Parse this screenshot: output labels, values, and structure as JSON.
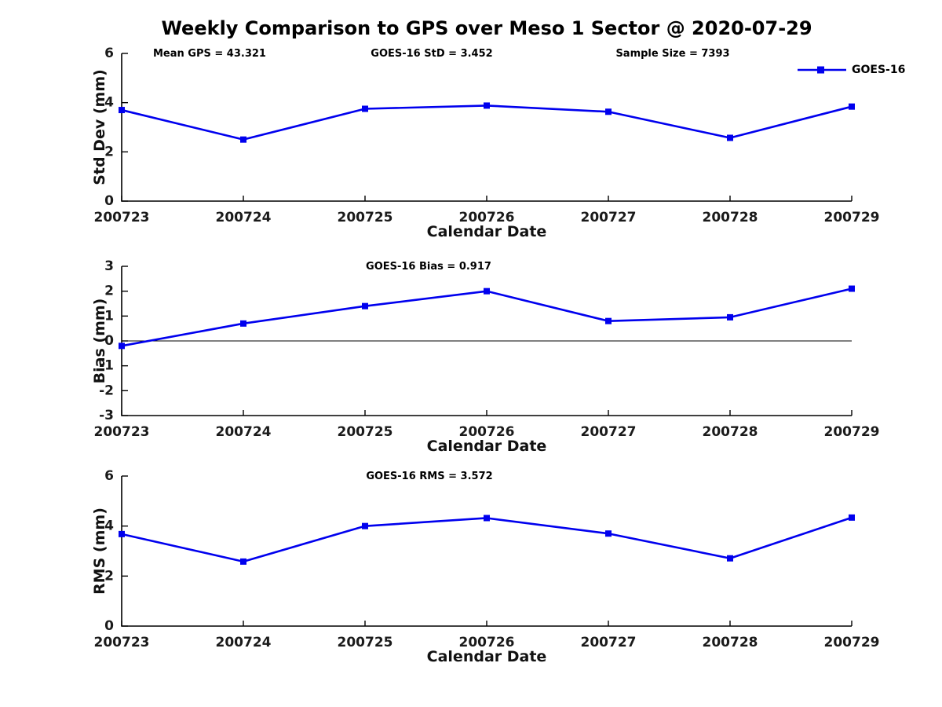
{
  "figure": {
    "title": "Weekly Comparison to GPS over Meso 1 Sector @ 2020-07-29",
    "background_color": "#ffffff",
    "line_color": "#0000EE",
    "axis_color": "#000000",
    "legend": {
      "label": "GOES-16",
      "position": "top-right",
      "marker": "square"
    }
  },
  "chart_data": [
    {
      "type": "line",
      "id": "std-dev",
      "ylabel": "Std Dev (mm)",
      "xlabel": "Calendar Date",
      "ylim": [
        0,
        6
      ],
      "yticks": [
        0,
        2,
        4,
        6
      ],
      "categories": [
        "200723",
        "200724",
        "200725",
        "200726",
        "200727",
        "200728",
        "200729"
      ],
      "series": [
        {
          "name": "GOES-16",
          "values": [
            3.7,
            2.5,
            3.75,
            3.88,
            3.63,
            2.57,
            3.84
          ]
        }
      ],
      "annotations": [
        "Mean GPS = 43.321",
        "GOES-16 StD = 3.452",
        "Sample Size = 7393"
      ],
      "zero_line": false,
      "grid": false,
      "show_legend": true
    },
    {
      "type": "line",
      "id": "bias",
      "ylabel": "Bias (mm)",
      "xlabel": "Calendar Date",
      "ylim": [
        -3,
        3
      ],
      "yticks": [
        -3,
        -2,
        -1,
        0,
        1,
        2,
        3
      ],
      "categories": [
        "200723",
        "200724",
        "200725",
        "200726",
        "200727",
        "200728",
        "200729"
      ],
      "series": [
        {
          "name": "GOES-16",
          "values": [
            -0.2,
            0.7,
            1.4,
            2.0,
            0.8,
            0.95,
            2.1
          ]
        }
      ],
      "annotations": [
        "GOES-16 Bias  = 0.917"
      ],
      "zero_line": true,
      "grid": false,
      "show_legend": false
    },
    {
      "type": "line",
      "id": "rms",
      "ylabel": "RMS (mm)",
      "xlabel": "Calendar Date",
      "ylim": [
        0,
        6
      ],
      "yticks": [
        0,
        2,
        4,
        6
      ],
      "categories": [
        "200723",
        "200724",
        "200725",
        "200726",
        "200727",
        "200728",
        "200729"
      ],
      "series": [
        {
          "name": "GOES-16",
          "values": [
            3.68,
            2.58,
            4.0,
            4.32,
            3.7,
            2.71,
            4.34
          ]
        }
      ],
      "annotations": [
        "GOES-16 RMS = 3.572"
      ],
      "zero_line": false,
      "grid": false,
      "show_legend": false
    }
  ]
}
